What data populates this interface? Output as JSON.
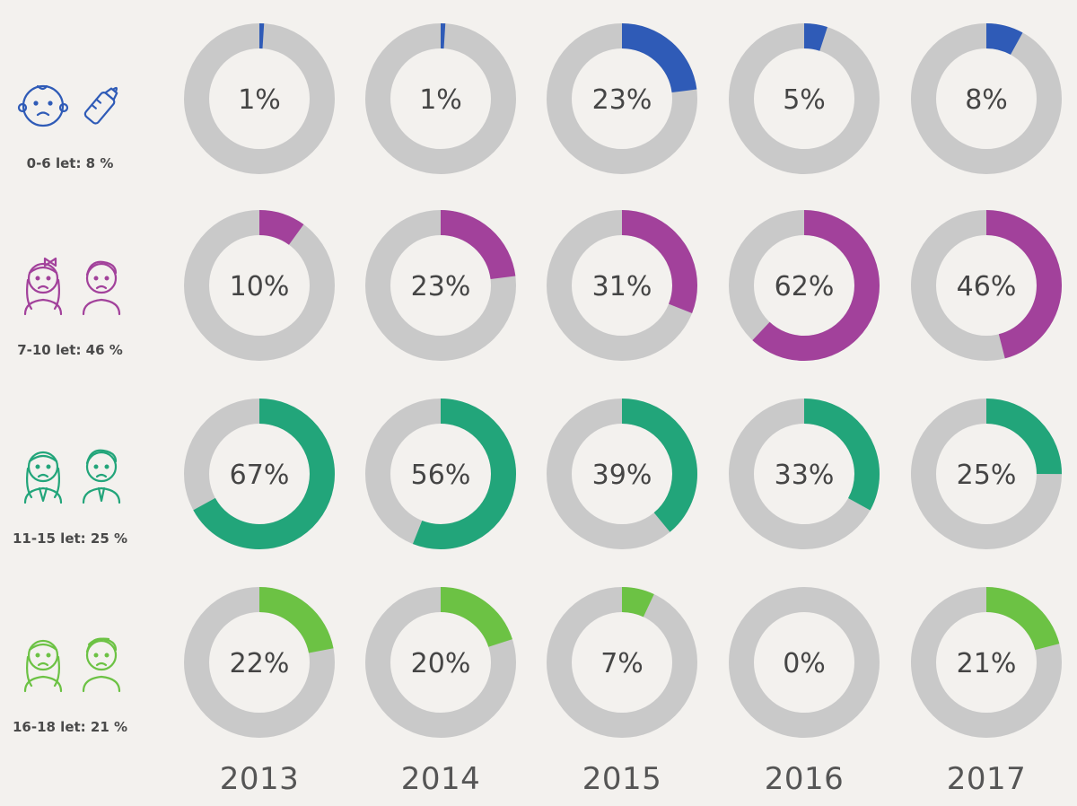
{
  "chart_data": {
    "type": "donut-grid",
    "years": [
      "2013",
      "2014",
      "2015",
      "2016",
      "2017"
    ],
    "groups": [
      {
        "label": "0-6 let: 8 %",
        "color": "#2f5bb7",
        "icons": [
          "baby-face-icon",
          "baby-bottle-icon"
        ],
        "values": [
          1,
          1,
          23,
          5,
          8
        ]
      },
      {
        "label": "7-10 let: 46 %",
        "color": "#a2419b",
        "icons": [
          "girl-face-icon",
          "boy-face-icon"
        ],
        "values": [
          10,
          23,
          31,
          62,
          46
        ]
      },
      {
        "label": "11-15 let: 25 %",
        "color": "#22a57a",
        "icons": [
          "schoolgirl-icon",
          "schoolboy-icon"
        ],
        "values": [
          67,
          56,
          39,
          33,
          25
        ]
      },
      {
        "label": "16-18 let: 21 %",
        "color": "#6cc244",
        "icons": [
          "teen-girl-icon",
          "teen-boy-icon"
        ],
        "values": [
          22,
          20,
          7,
          0,
          21
        ]
      }
    ],
    "track_color": "#c9c9c9",
    "value_suffix": "%"
  }
}
